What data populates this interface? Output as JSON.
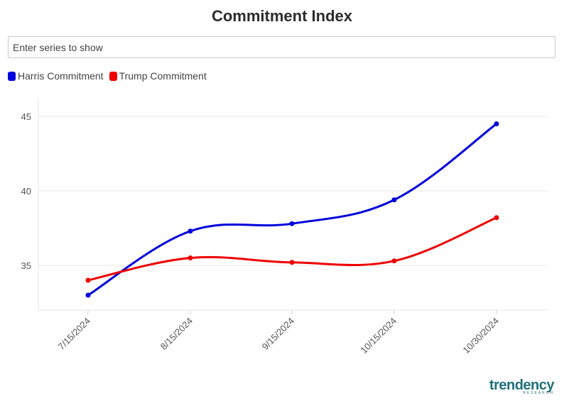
{
  "title": "Commitment Index",
  "search": {
    "placeholder": "Enter series to show"
  },
  "legend": [
    {
      "label": "Harris Commitment",
      "color": "#0000dd"
    },
    {
      "label": "Trump Commitment",
      "color": "#ee0000"
    }
  ],
  "logo": {
    "name": "trendency",
    "sub": "RESEARCH"
  },
  "chart_data": {
    "type": "line",
    "title": "Commitment Index",
    "categories": [
      "7/15/2024",
      "8/15/2024",
      "9/15/2024",
      "10/15/2024",
      "10/30/2024"
    ],
    "series": [
      {
        "name": "Harris Commitment",
        "color": "#0000dd",
        "values": [
          33.0,
          37.3,
          37.8,
          39.4,
          44.5
        ]
      },
      {
        "name": "Trump Commitment",
        "color": "#ee0000",
        "values": [
          34.0,
          35.5,
          35.2,
          35.3,
          38.2
        ]
      }
    ],
    "yticks": [
      35,
      40,
      45
    ],
    "ylim": [
      32,
      46
    ],
    "grid": true,
    "legend_position": "top-left"
  }
}
